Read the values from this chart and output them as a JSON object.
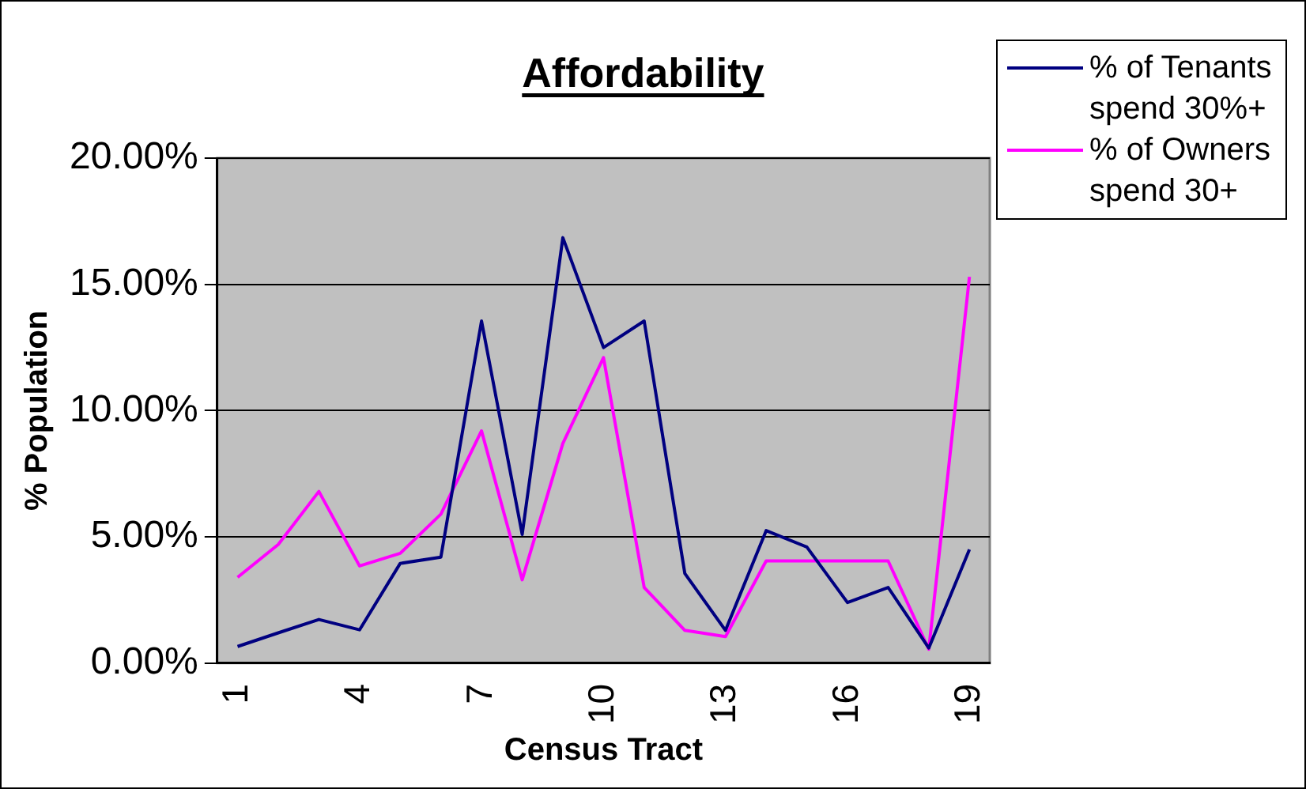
{
  "chart_data": {
    "type": "line",
    "title": "Affordability",
    "xlabel": "Census Tract",
    "ylabel": "% Population",
    "categories": [
      "1",
      null,
      null,
      "4",
      null,
      null,
      "7",
      null,
      null,
      "10",
      null,
      null,
      "13",
      null,
      null,
      "16",
      null,
      null,
      "19"
    ],
    "series": [
      {
        "name": "% of Tenants spend 30%+",
        "color": "#000080",
        "values": [
          0.66,
          1.2,
          1.73,
          1.32,
          3.95,
          4.2,
          13.55,
          5.1,
          16.85,
          12.5,
          13.55,
          3.55,
          1.3,
          5.25,
          4.6,
          2.4,
          3.0,
          0.6,
          4.5
        ]
      },
      {
        "name": "% of Owners spend 30+",
        "color": "#ff00ff",
        "values": [
          3.4,
          4.7,
          6.8,
          3.85,
          4.35,
          5.9,
          9.2,
          3.3,
          8.7,
          12.1,
          3.0,
          1.3,
          1.05,
          4.05,
          4.05,
          4.05,
          4.05,
          0.55,
          15.3
        ]
      }
    ],
    "ylim": [
      0,
      20
    ],
    "yticks": [
      {
        "value": 0,
        "label": "0.00%"
      },
      {
        "value": 5,
        "label": "5.00%"
      },
      {
        "value": 10,
        "label": "10.00%"
      },
      {
        "value": 15,
        "label": "15.00%"
      },
      {
        "value": 20,
        "label": "20.00%"
      }
    ],
    "grid": "y",
    "legend": "right",
    "marker": "none",
    "line_style": "solid"
  }
}
